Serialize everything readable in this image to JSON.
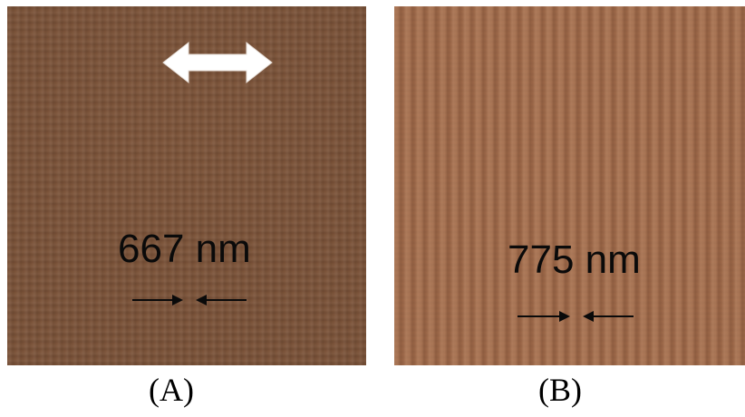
{
  "panels": [
    {
      "id": "A",
      "caption": "(A)",
      "measurement": "667 nm",
      "polarization_marker": "double-headed arrow",
      "texture_color": "#7a5238"
    },
    {
      "id": "B",
      "caption": "(B)",
      "measurement": "775 nm",
      "texture_color": "#a16c4c"
    }
  ],
  "colors": {
    "label_text": "#0a0a0a",
    "arrow_fill": "#ffffff",
    "background": "#ffffff"
  }
}
